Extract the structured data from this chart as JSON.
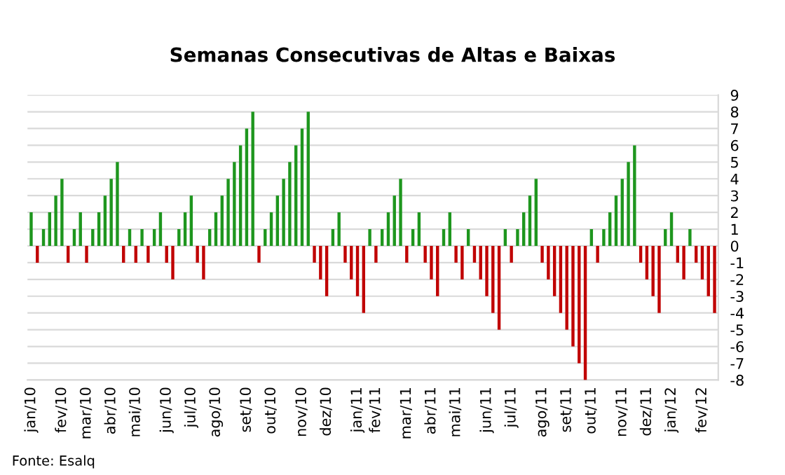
{
  "chart_data": {
    "type": "bar",
    "title": "Semanas Consecutivas de Altas e Baixas",
    "categories": [
      "jan/10",
      null,
      null,
      null,
      null,
      "fev/10",
      null,
      null,
      null,
      "mar/10",
      null,
      null,
      null,
      "abr/10",
      null,
      null,
      null,
      "mai/10",
      null,
      null,
      null,
      null,
      "jun/10",
      null,
      null,
      null,
      "jul/10",
      null,
      null,
      null,
      "ago/10",
      null,
      null,
      null,
      null,
      "set/10",
      null,
      null,
      null,
      "out/10",
      null,
      null,
      null,
      null,
      "nov/10",
      null,
      null,
      null,
      "dez/10",
      null,
      null,
      null,
      null,
      "jan/11",
      null,
      null,
      "fev/11",
      null,
      null,
      null,
      null,
      "mar/11",
      null,
      null,
      null,
      "abr/11",
      null,
      null,
      null,
      "mai/11",
      null,
      null,
      null,
      null,
      "jun/11",
      null,
      null,
      null,
      "jul/11",
      null,
      null,
      null,
      null,
      "ago/11",
      null,
      null,
      null,
      "set/11",
      null,
      null,
      null,
      "out/11",
      null,
      null,
      null,
      null,
      "nov/11",
      null,
      null,
      null,
      "dez/11",
      null,
      null,
      null,
      "jan/12",
      null,
      null,
      null,
      null,
      "fev/12",
      null,
      null
    ],
    "values": [
      2,
      -1,
      1,
      2,
      3,
      4,
      -1,
      1,
      2,
      -1,
      1,
      2,
      3,
      4,
      5,
      -1,
      1,
      -1,
      1,
      -1,
      1,
      2,
      -1,
      -2,
      1,
      2,
      3,
      -1,
      -2,
      1,
      2,
      3,
      4,
      5,
      6,
      7,
      8,
      -1,
      1,
      2,
      3,
      4,
      5,
      6,
      7,
      8,
      -1,
      -2,
      -3,
      1,
      2,
      -1,
      -2,
      -3,
      -4,
      1,
      -1,
      1,
      2,
      3,
      4,
      -1,
      1,
      2,
      -1,
      -2,
      -3,
      1,
      2,
      -1,
      -2,
      1,
      -1,
      -2,
      -3,
      -4,
      -5,
      1,
      -1,
      1,
      2,
      3,
      4,
      -1,
      -2,
      -3,
      -4,
      -5,
      -6,
      -7,
      -8,
      1,
      -1,
      1,
      2,
      3,
      4,
      5,
      6,
      -1,
      -2,
      -3,
      -4,
      1,
      2,
      -1,
      -2,
      1,
      -1,
      -2,
      -3,
      -4
    ],
    "colors": [
      "#1e961e",
      "#c00000",
      "#1e961e",
      "#1e961e",
      "#1e961e",
      "#1e961e",
      "#c00000",
      "#1e961e",
      "#1e961e",
      "#c00000",
      "#1e961e",
      "#1e961e",
      "#1e961e",
      "#1e961e",
      "#1e961e",
      "#c00000",
      "#1e961e",
      "#c00000",
      "#1e961e",
      "#c00000",
      "#1e961e",
      "#1e961e",
      "#c00000",
      "#c00000",
      "#1e961e",
      "#1e961e",
      "#1e961e",
      "#c00000",
      "#c00000",
      "#1e961e",
      "#1e961e",
      "#1e961e",
      "#1e961e",
      "#1e961e",
      "#1e961e",
      "#1e961e",
      "#1e961e",
      "#c00000",
      "#1e961e",
      "#1e961e",
      "#1e961e",
      "#1e961e",
      "#1e961e",
      "#1e961e",
      "#1e961e",
      "#1e961e",
      "#c00000",
      "#c00000",
      "#c00000",
      "#1e961e",
      "#1e961e",
      "#c00000",
      "#c00000",
      "#c00000",
      "#c00000",
      "#1e961e",
      "#c00000",
      "#1e961e",
      "#1e961e",
      "#1e961e",
      "#1e961e",
      "#c00000",
      "#1e961e",
      "#1e961e",
      "#c00000",
      "#c00000",
      "#c00000",
      "#1e961e",
      "#1e961e",
      "#c00000",
      "#c00000",
      "#1e961e",
      "#c00000",
      "#c00000",
      "#c00000",
      "#c00000",
      "#c00000",
      "#1e961e",
      "#c00000",
      "#1e961e",
      "#1e961e",
      "#1e961e",
      "#1e961e",
      "#c00000",
      "#c00000",
      "#c00000",
      "#c00000",
      "#c00000",
      "#c00000",
      "#c00000",
      "#c00000",
      "#1e961e",
      "#c00000",
      "#1e961e",
      "#1e961e",
      "#1e961e",
      "#1e961e",
      "#1e961e",
      "#1e961e",
      "#c00000",
      "#c00000",
      "#c00000",
      "#c00000",
      "#1e961e",
      "#1e961e",
      "#c00000",
      "#c00000",
      "#1e961e",
      "#c00000",
      "#c00000",
      "#c00000",
      "#c00000"
    ],
    "ylim": [
      -8,
      9
    ],
    "yticks": [
      -8,
      -7,
      -6,
      -5,
      -4,
      -3,
      -2,
      -1,
      0,
      1,
      2,
      3,
      4,
      5,
      6,
      7,
      8,
      9
    ],
    "grid": "y",
    "annotations": [
      "Fonte: Esalq"
    ]
  }
}
